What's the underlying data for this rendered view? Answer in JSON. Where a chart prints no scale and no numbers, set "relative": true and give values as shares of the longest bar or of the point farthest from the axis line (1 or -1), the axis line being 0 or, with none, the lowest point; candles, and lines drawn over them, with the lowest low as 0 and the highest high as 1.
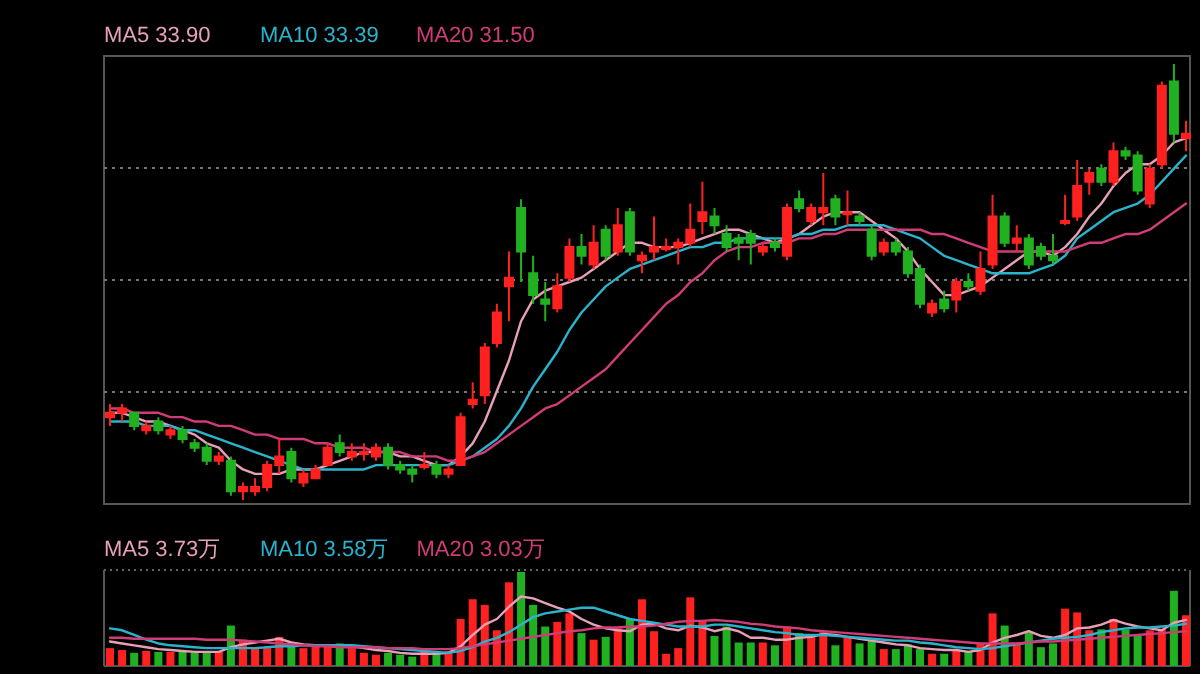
{
  "chart_data": [
    {
      "type": "candlestick",
      "relative": true,
      "grid": true,
      "legend": "top left",
      "categories": [
        null,
        null,
        null,
        null,
        null,
        null,
        null,
        null,
        null,
        null,
        null,
        null,
        null,
        null,
        null,
        null,
        null,
        null,
        null,
        null,
        null,
        null,
        null,
        null,
        null,
        null,
        null,
        null,
        null,
        null,
        null,
        null,
        null,
        null,
        null,
        null,
        null,
        null,
        null,
        null,
        null,
        null,
        null,
        null,
        null,
        null,
        null,
        null,
        null,
        null,
        null,
        null,
        null,
        null,
        null,
        null,
        null,
        null,
        null,
        null,
        null,
        null,
        null,
        null,
        null,
        null,
        null,
        null,
        null,
        null,
        null,
        null,
        null,
        null,
        null,
        null,
        null,
        null,
        null,
        null,
        null,
        null,
        null,
        null,
        null,
        null,
        null,
        null,
        null,
        null
      ],
      "ohlc": [
        [
          0.19,
          0.22,
          0.17,
          0.2
        ],
        [
          0.2,
          0.22,
          0.18,
          0.21
        ],
        [
          0.2,
          0.2,
          0.16,
          0.17
        ],
        [
          0.16,
          0.18,
          0.15,
          0.17
        ],
        [
          0.18,
          0.19,
          0.15,
          0.16
        ],
        [
          0.15,
          0.17,
          0.14,
          0.16
        ],
        [
          0.16,
          0.17,
          0.13,
          0.14
        ],
        [
          0.13,
          0.14,
          0.11,
          0.12
        ],
        [
          0.12,
          0.13,
          0.08,
          0.09
        ],
        [
          0.09,
          0.11,
          0.08,
          0.1
        ],
        [
          0.09,
          0.1,
          0.01,
          0.02
        ],
        [
          0.02,
          0.04,
          0,
          0.03
        ],
        [
          0.02,
          0.05,
          0.01,
          0.03
        ],
        [
          0.03,
          0.09,
          0.02,
          0.08
        ],
        [
          0.08,
          0.14,
          0.06,
          0.1
        ],
        [
          0.11,
          0.12,
          0.04,
          0.05
        ],
        [
          0.04,
          0.07,
          0.03,
          0.06
        ],
        [
          0.05,
          0.08,
          0.05,
          0.07
        ],
        [
          0.08,
          0.13,
          0.08,
          0.12
        ],
        [
          0.13,
          0.15,
          0.1,
          0.11
        ],
        [
          0.1,
          0.13,
          0.09,
          0.11
        ],
        [
          0.11,
          0.13,
          0.09,
          0.11
        ],
        [
          0.1,
          0.13,
          0.09,
          0.12
        ],
        [
          0.12,
          0.13,
          0.07,
          0.08
        ],
        [
          0.08,
          0.09,
          0.06,
          0.07
        ],
        [
          0.07,
          0.08,
          0.04,
          0.06
        ],
        [
          0.08,
          0.11,
          0.07,
          0.08
        ],
        [
          0.08,
          0.09,
          0.05,
          0.06
        ],
        [
          0.06,
          0.08,
          0.05,
          0.07
        ],
        [
          0.08,
          0.2,
          0.08,
          0.19
        ],
        [
          0.22,
          0.27,
          0.21,
          0.23
        ],
        [
          0.24,
          0.36,
          0.22,
          0.35
        ],
        [
          0.36,
          0.45,
          0.35,
          0.43
        ],
        [
          0.49,
          0.57,
          0.41,
          0.51
        ],
        [
          0.67,
          0.69,
          0.5,
          0.57
        ],
        [
          0.52,
          0.56,
          0.45,
          0.47
        ],
        [
          0.46,
          0.5,
          0.41,
          0.45
        ],
        [
          0.44,
          0.52,
          0.43,
          0.49
        ],
        [
          0.51,
          0.6,
          0.5,
          0.58
        ],
        [
          0.58,
          0.61,
          0.54,
          0.56
        ],
        [
          0.54,
          0.63,
          0.53,
          0.59
        ],
        [
          0.62,
          0.63,
          0.55,
          0.56
        ],
        [
          0.57,
          0.67,
          0.56,
          0.63
        ],
        [
          0.66,
          0.67,
          0.56,
          0.57
        ],
        [
          0.55,
          0.57,
          0.52,
          0.56
        ],
        [
          0.57,
          0.65,
          0.55,
          0.58
        ],
        [
          0.58,
          0.6,
          0.57,
          0.58
        ],
        [
          0.58,
          0.6,
          0.54,
          0.59
        ],
        [
          0.59,
          0.68,
          0.58,
          0.62
        ],
        [
          0.64,
          0.73,
          0.61,
          0.66
        ],
        [
          0.65,
          0.67,
          0.61,
          0.63
        ],
        [
          0.61,
          0.63,
          0.57,
          0.58
        ],
        [
          0.6,
          0.61,
          0.55,
          0.59
        ],
        [
          0.61,
          0.62,
          0.54,
          0.59
        ],
        [
          0.57,
          0.59,
          0.56,
          0.58
        ],
        [
          0.59,
          0.6,
          0.57,
          0.58
        ],
        [
          0.56,
          0.68,
          0.55,
          0.67
        ],
        [
          0.69,
          0.71,
          0.66,
          0.67
        ],
        [
          0.64,
          0.68,
          0.63,
          0.67
        ],
        [
          0.66,
          0.75,
          0.63,
          0.67
        ],
        [
          0.69,
          0.7,
          0.63,
          0.65
        ],
        [
          0.66,
          0.71,
          0.63,
          0.66
        ],
        [
          0.65,
          0.66,
          0.63,
          0.64
        ],
        [
          0.62,
          0.63,
          0.55,
          0.56
        ],
        [
          0.57,
          0.6,
          0.56,
          0.59
        ],
        [
          0.59,
          0.6,
          0.56,
          0.57
        ],
        [
          0.57,
          0.58,
          0.51,
          0.52
        ],
        [
          0.53,
          0.54,
          0.44,
          0.45
        ],
        [
          0.43,
          0.46,
          0.42,
          0.45
        ],
        [
          0.46,
          0.48,
          0.43,
          0.44
        ],
        [
          0.46,
          0.51,
          0.43,
          0.5
        ],
        [
          0.5,
          0.52,
          0.48,
          0.49
        ],
        [
          0.48,
          0.57,
          0.47,
          0.53
        ],
        [
          0.54,
          0.7,
          0.53,
          0.65
        ],
        [
          0.65,
          0.66,
          0.58,
          0.59
        ],
        [
          0.59,
          0.63,
          0.57,
          0.6
        ],
        [
          0.6,
          0.61,
          0.53,
          0.54
        ],
        [
          0.58,
          0.59,
          0.55,
          0.56
        ],
        [
          0.56,
          0.61,
          0.54,
          0.55
        ],
        [
          0.64,
          0.7,
          0.63,
          0.64
        ],
        [
          0.65,
          0.78,
          0.64,
          0.72
        ],
        [
          0.73,
          0.76,
          0.7,
          0.75
        ],
        [
          0.76,
          0.77,
          0.72,
          0.73
        ],
        [
          0.73,
          0.82,
          0.72,
          0.8
        ],
        [
          0.8,
          0.81,
          0.78,
          0.79
        ],
        [
          0.79,
          0.8,
          0.7,
          0.71
        ],
        [
          0.68,
          0.77,
          0.67,
          0.76
        ],
        [
          0.77,
          0.96,
          0.76,
          0.95
        ],
        [
          0.96,
          1,
          0.82,
          0.84
        ],
        [
          0.83,
          0.87,
          0.8,
          0.84
        ]
      ],
      "colors": [
        "#ff2020",
        "#ff2020",
        "#20b020",
        "#ff2020",
        "#20b020",
        "#ff2020",
        "#20b020",
        "#20b020",
        "#20b020",
        "#ff2020",
        "#20b020",
        "#ff2020",
        "#ff2020",
        "#ff2020",
        "#ff2020",
        "#20b020",
        "#ff2020",
        "#ff2020",
        "#ff2020",
        "#20b020",
        "#ff2020",
        "#ff2020",
        "#ff2020",
        "#20b020",
        "#20b020",
        "#20b020",
        "#ff2020",
        "#20b020",
        "#ff2020",
        "#ff2020",
        "#ff2020",
        "#ff2020",
        "#ff2020",
        "#ff2020",
        "#20b020",
        "#20b020",
        "#20b020",
        "#ff2020",
        "#ff2020",
        "#20b020",
        "#ff2020",
        "#20b020",
        "#ff2020",
        "#20b020",
        "#ff2020",
        "#ff2020",
        "#ff2020",
        "#ff2020",
        "#ff2020",
        "#ff2020",
        "#20b020",
        "#20b020",
        "#20b020",
        "#20b020",
        "#ff2020",
        "#20b020",
        "#ff2020",
        "#20b020",
        "#ff2020",
        "#ff2020",
        "#20b020",
        "#ff2020",
        "#20b020",
        "#20b020",
        "#ff2020",
        "#20b020",
        "#20b020",
        "#20b020",
        "#ff2020",
        "#20b020",
        "#ff2020",
        "#20b020",
        "#ff2020",
        "#ff2020",
        "#20b020",
        "#ff2020",
        "#20b020",
        "#20b020",
        "#20b020",
        "#ff2020",
        "#ff2020",
        "#ff2020",
        "#20b020",
        "#ff2020",
        "#20b020",
        "#20b020",
        "#ff2020",
        "#ff2020",
        "#20b020",
        "#ff2020"
      ],
      "series": [
        {
          "type": "line",
          "name": "MA5 33.90",
          "color": "#e8a0b8",
          "values": [
            0.2,
            0.2,
            0.19,
            0.18,
            0.18,
            0.17,
            0.16,
            0.15,
            0.13,
            0.12,
            0.09,
            0.07,
            0.06,
            0.06,
            0.06,
            0.07,
            0.07,
            0.07,
            0.08,
            0.09,
            0.1,
            0.11,
            0.11,
            0.11,
            0.1,
            0.1,
            0.09,
            0.08,
            0.08,
            0.1,
            0.13,
            0.18,
            0.25,
            0.32,
            0.41,
            0.46,
            0.48,
            0.49,
            0.5,
            0.51,
            0.53,
            0.55,
            0.57,
            0.59,
            0.59,
            0.58,
            0.58,
            0.58,
            0.59,
            0.6,
            0.61,
            0.62,
            0.62,
            0.61,
            0.6,
            0.59,
            0.6,
            0.61,
            0.63,
            0.65,
            0.66,
            0.66,
            0.66,
            0.64,
            0.62,
            0.6,
            0.57,
            0.53,
            0.5,
            0.47,
            0.47,
            0.48,
            0.49,
            0.51,
            0.53,
            0.55,
            0.57,
            0.57,
            0.56,
            0.58,
            0.61,
            0.65,
            0.68,
            0.72,
            0.75,
            0.77,
            0.77,
            0.79,
            0.82,
            0.83
          ]
        },
        {
          "type": "line",
          "name": "MA10 33.39",
          "color": "#2ab4cc",
          "values": [
            0.18,
            0.18,
            0.18,
            0.17,
            0.17,
            0.17,
            0.16,
            0.16,
            0.15,
            0.14,
            0.13,
            0.12,
            0.11,
            0.1,
            0.09,
            0.08,
            0.07,
            0.07,
            0.07,
            0.07,
            0.07,
            0.07,
            0.08,
            0.08,
            0.08,
            0.08,
            0.08,
            0.08,
            0.08,
            0.09,
            0.1,
            0.12,
            0.14,
            0.17,
            0.21,
            0.26,
            0.3,
            0.34,
            0.39,
            0.43,
            0.46,
            0.49,
            0.51,
            0.53,
            0.54,
            0.55,
            0.56,
            0.57,
            0.58,
            0.58,
            0.59,
            0.59,
            0.6,
            0.6,
            0.6,
            0.6,
            0.6,
            0.61,
            0.61,
            0.62,
            0.62,
            0.63,
            0.63,
            0.63,
            0.63,
            0.62,
            0.61,
            0.6,
            0.58,
            0.56,
            0.55,
            0.54,
            0.53,
            0.52,
            0.52,
            0.52,
            0.52,
            0.53,
            0.54,
            0.56,
            0.6,
            0.62,
            0.64,
            0.66,
            0.67,
            0.68,
            0.7,
            0.73,
            0.76,
            0.79
          ]
        },
        {
          "type": "line",
          "name": "MA20 31.50",
          "color": "#d03c78",
          "values": [
            0.21,
            0.21,
            0.2,
            0.2,
            0.2,
            0.19,
            0.19,
            0.18,
            0.18,
            0.17,
            0.17,
            0.16,
            0.15,
            0.15,
            0.14,
            0.14,
            0.14,
            0.13,
            0.13,
            0.12,
            0.12,
            0.12,
            0.11,
            0.11,
            0.11,
            0.1,
            0.1,
            0.1,
            0.09,
            0.09,
            0.1,
            0.11,
            0.13,
            0.15,
            0.17,
            0.19,
            0.21,
            0.22,
            0.24,
            0.26,
            0.28,
            0.3,
            0.33,
            0.36,
            0.39,
            0.42,
            0.45,
            0.47,
            0.5,
            0.52,
            0.55,
            0.57,
            0.58,
            0.58,
            0.59,
            0.59,
            0.59,
            0.6,
            0.6,
            0.61,
            0.61,
            0.62,
            0.62,
            0.62,
            0.62,
            0.62,
            0.62,
            0.62,
            0.61,
            0.61,
            0.6,
            0.59,
            0.58,
            0.57,
            0.57,
            0.57,
            0.57,
            0.57,
            0.57,
            0.57,
            0.58,
            0.59,
            0.59,
            0.6,
            0.61,
            0.61,
            0.62,
            0.64,
            0.66,
            0.68
          ]
        }
      ]
    },
    {
      "type": "bar",
      "relative": true,
      "legend": "top left",
      "categories": [
        null,
        null,
        null,
        null,
        null,
        null,
        null,
        null,
        null,
        null,
        null,
        null,
        null,
        null,
        null,
        null,
        null,
        null,
        null,
        null,
        null,
        null,
        null,
        null,
        null,
        null,
        null,
        null,
        null,
        null,
        null,
        null,
        null,
        null,
        null,
        null,
        null,
        null,
        null,
        null,
        null,
        null,
        null,
        null,
        null,
        null,
        null,
        null,
        null,
        null,
        null,
        null,
        null,
        null,
        null,
        null,
        null,
        null,
        null,
        null,
        null,
        null,
        null,
        null,
        null,
        null,
        null,
        null,
        null,
        null,
        null,
        null,
        null,
        null,
        null,
        null,
        null,
        null,
        null,
        null,
        null,
        null,
        null,
        null,
        null,
        null,
        null,
        null,
        null,
        null
      ],
      "series": [
        {
          "type": "bar",
          "values": [
            0.19,
            0.17,
            0.14,
            0.16,
            0.15,
            0.15,
            0.15,
            0.14,
            0.15,
            0.15,
            0.43,
            0.28,
            0.19,
            0.19,
            0.31,
            0.24,
            0.19,
            0.21,
            0.23,
            0.24,
            0.19,
            0.14,
            0.12,
            0.14,
            0.12,
            0.1,
            0.15,
            0.15,
            0.16,
            0.5,
            0.71,
            0.65,
            0.38,
            0.89,
            1,
            0.65,
            0.42,
            0.47,
            0.56,
            0.35,
            0.28,
            0.31,
            0.4,
            0.5,
            0.71,
            0.37,
            0.13,
            0.19,
            0.73,
            0.49,
            0.32,
            0.42,
            0.25,
            0.25,
            0.25,
            0.22,
            0.42,
            0.35,
            0.32,
            0.36,
            0.22,
            0.3,
            0.24,
            0.29,
            0.18,
            0.18,
            0.23,
            0.18,
            0.13,
            0.13,
            0.17,
            0.15,
            0.24,
            0.56,
            0.43,
            0.25,
            0.36,
            0.2,
            0.24,
            0.61,
            0.57,
            0.38,
            0.39,
            0.5,
            0.39,
            0.32,
            0.38,
            0.39,
            0.8,
            0.54
          ],
          "colors": [
            "#ff2020",
            "#ff2020",
            "#20b020",
            "#ff2020",
            "#20b020",
            "#ff2020",
            "#20b020",
            "#20b020",
            "#20b020",
            "#ff2020",
            "#20b020",
            "#ff2020",
            "#ff2020",
            "#ff2020",
            "#ff2020",
            "#20b020",
            "#ff2020",
            "#ff2020",
            "#ff2020",
            "#20b020",
            "#ff2020",
            "#ff2020",
            "#ff2020",
            "#20b020",
            "#20b020",
            "#20b020",
            "#ff2020",
            "#20b020",
            "#ff2020",
            "#ff2020",
            "#ff2020",
            "#ff2020",
            "#ff2020",
            "#ff2020",
            "#20b020",
            "#20b020",
            "#20b020",
            "#ff2020",
            "#ff2020",
            "#20b020",
            "#ff2020",
            "#20b020",
            "#ff2020",
            "#20b020",
            "#ff2020",
            "#ff2020",
            "#ff2020",
            "#ff2020",
            "#ff2020",
            "#ff2020",
            "#20b020",
            "#20b020",
            "#20b020",
            "#20b020",
            "#ff2020",
            "#20b020",
            "#ff2020",
            "#20b020",
            "#ff2020",
            "#ff2020",
            "#20b020",
            "#ff2020",
            "#20b020",
            "#20b020",
            "#ff2020",
            "#20b020",
            "#20b020",
            "#20b020",
            "#ff2020",
            "#20b020",
            "#ff2020",
            "#20b020",
            "#ff2020",
            "#ff2020",
            "#20b020",
            "#ff2020",
            "#20b020",
            "#20b020",
            "#20b020",
            "#ff2020",
            "#ff2020",
            "#ff2020",
            "#20b020",
            "#ff2020",
            "#20b020",
            "#20b020",
            "#ff2020",
            "#ff2020",
            "#20b020",
            "#ff2020"
          ]
        },
        {
          "type": "line",
          "name": "MA5 3.73万",
          "color": "#e8a0b8",
          "values": [
            0.26,
            0.24,
            0.22,
            0.2,
            0.18,
            0.17,
            0.16,
            0.15,
            0.15,
            0.15,
            0.2,
            0.23,
            0.25,
            0.27,
            0.29,
            0.25,
            0.23,
            0.22,
            0.22,
            0.22,
            0.21,
            0.19,
            0.17,
            0.16,
            0.14,
            0.13,
            0.13,
            0.13,
            0.14,
            0.21,
            0.33,
            0.44,
            0.5,
            0.63,
            0.74,
            0.72,
            0.67,
            0.62,
            0.58,
            0.5,
            0.44,
            0.4,
            0.38,
            0.37,
            0.44,
            0.45,
            0.4,
            0.38,
            0.43,
            0.41,
            0.37,
            0.4,
            0.37,
            0.3,
            0.3,
            0.28,
            0.28,
            0.3,
            0.31,
            0.34,
            0.33,
            0.31,
            0.29,
            0.27,
            0.25,
            0.23,
            0.22,
            0.19,
            0.18,
            0.17,
            0.17,
            0.15,
            0.17,
            0.25,
            0.3,
            0.33,
            0.37,
            0.32,
            0.3,
            0.33,
            0.4,
            0.41,
            0.44,
            0.49,
            0.45,
            0.42,
            0.4,
            0.38,
            0.46,
            0.49
          ]
        },
        {
          "type": "line",
          "name": "MA10 3.58万",
          "color": "#2ab4cc",
          "values": [
            0.4,
            0.38,
            0.33,
            0.28,
            0.24,
            0.22,
            0.21,
            0.2,
            0.19,
            0.19,
            0.19,
            0.19,
            0.19,
            0.2,
            0.21,
            0.21,
            0.22,
            0.22,
            0.22,
            0.22,
            0.22,
            0.21,
            0.2,
            0.19,
            0.18,
            0.17,
            0.16,
            0.15,
            0.14,
            0.16,
            0.2,
            0.26,
            0.3,
            0.36,
            0.44,
            0.52,
            0.56,
            0.58,
            0.6,
            0.62,
            0.62,
            0.58,
            0.54,
            0.5,
            0.48,
            0.46,
            0.44,
            0.42,
            0.42,
            0.42,
            0.44,
            0.44,
            0.42,
            0.4,
            0.38,
            0.36,
            0.35,
            0.33,
            0.33,
            0.33,
            0.32,
            0.31,
            0.3,
            0.29,
            0.28,
            0.27,
            0.27,
            0.25,
            0.24,
            0.22,
            0.2,
            0.19,
            0.18,
            0.19,
            0.21,
            0.23,
            0.25,
            0.27,
            0.29,
            0.3,
            0.31,
            0.33,
            0.36,
            0.38,
            0.4,
            0.41,
            0.41,
            0.42,
            0.43,
            0.45
          ]
        },
        {
          "type": "line",
          "name": "MA20 3.03万",
          "color": "#d03c78",
          "values": [
            0.3,
            0.3,
            0.29,
            0.29,
            0.29,
            0.29,
            0.29,
            0.29,
            0.28,
            0.28,
            0.28,
            0.27,
            0.26,
            0.25,
            0.24,
            0.23,
            0.22,
            0.21,
            0.21,
            0.2,
            0.2,
            0.2,
            0.2,
            0.19,
            0.19,
            0.19,
            0.18,
            0.18,
            0.18,
            0.19,
            0.21,
            0.23,
            0.25,
            0.27,
            0.29,
            0.31,
            0.33,
            0.35,
            0.37,
            0.38,
            0.4,
            0.41,
            0.41,
            0.42,
            0.42,
            0.43,
            0.45,
            0.47,
            0.48,
            0.48,
            0.49,
            0.48,
            0.47,
            0.45,
            0.44,
            0.42,
            0.41,
            0.4,
            0.38,
            0.37,
            0.36,
            0.35,
            0.34,
            0.33,
            0.32,
            0.31,
            0.3,
            0.29,
            0.28,
            0.27,
            0.26,
            0.25,
            0.24,
            0.24,
            0.24,
            0.24,
            0.25,
            0.26,
            0.26,
            0.27,
            0.28,
            0.29,
            0.3,
            0.31,
            0.32,
            0.33,
            0.34,
            0.35,
            0.36,
            0.37
          ]
        }
      ]
    }
  ]
}
